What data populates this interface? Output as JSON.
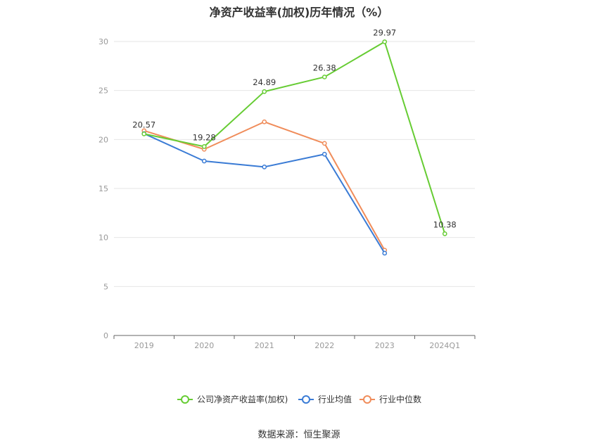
{
  "chart_data": {
    "type": "line",
    "title": "净资产收益率(加权)历年情况（%）",
    "categories": [
      "2019",
      "2020",
      "2021",
      "2022",
      "2023",
      "2024Q1"
    ],
    "ylim": [
      0,
      30
    ],
    "yticks": [
      0,
      5,
      10,
      15,
      20,
      25,
      30
    ],
    "grid": true,
    "legend_position": "bottom",
    "series": [
      {
        "name": "公司净资产收益率(加权)",
        "color": "#66cc33",
        "values": [
          20.57,
          19.28,
          24.89,
          26.38,
          29.97,
          10.38
        ],
        "labels": true
      },
      {
        "name": "行业均值",
        "color": "#3a7bd5",
        "values": [
          20.6,
          17.8,
          17.2,
          18.5,
          8.4,
          null
        ],
        "labels": false
      },
      {
        "name": "行业中位数",
        "color": "#f08c5a",
        "values": [
          20.9,
          19.0,
          21.8,
          19.6,
          8.7,
          null
        ],
        "labels": false
      }
    ]
  },
  "source": "数据来源：恒生聚源"
}
